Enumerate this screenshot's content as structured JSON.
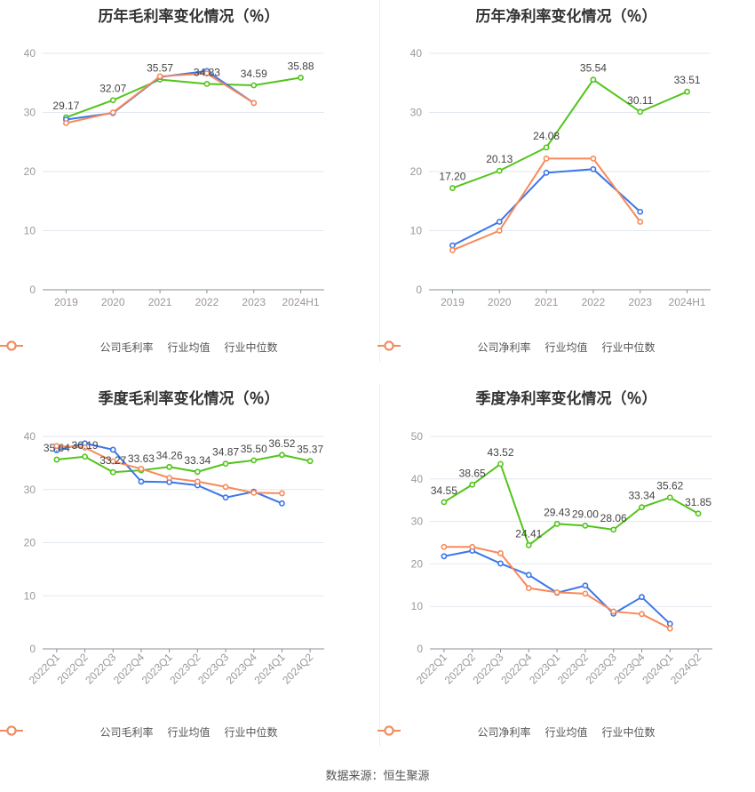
{
  "colors": {
    "company": "#52c41a",
    "avg": "#3b76e8",
    "median": "#f78a5a",
    "grid": "#e3e7f0",
    "axis": "#8a8f99",
    "tick": "#999999",
    "label": "#444444"
  },
  "source": "数据来源：恒生聚源",
  "chart_data": [
    {
      "type": "line",
      "title": "历年毛利率变化情况（％）",
      "categories": [
        "2019",
        "2020",
        "2021",
        "2022",
        "2023",
        "2024H1"
      ],
      "ylim": [
        0,
        40
      ],
      "yticks": [
        0,
        10,
        20,
        30,
        40
      ],
      "rotate": false,
      "series": [
        {
          "name": "公司毛利率",
          "key": "company",
          "values": [
            29.17,
            32.07,
            35.57,
            34.83,
            34.59,
            35.88
          ],
          "labels": [
            "29.17",
            "32.07",
            "35.57",
            "34.83",
            "34.59",
            "35.88"
          ]
        },
        {
          "name": "行业均值",
          "key": "avg",
          "values": [
            28.8,
            29.9,
            36.0,
            37.0,
            31.6,
            null
          ]
        },
        {
          "name": "行业中位数",
          "key": "median",
          "values": [
            28.2,
            30.0,
            36.1,
            36.6,
            31.6,
            null
          ]
        }
      ]
    },
    {
      "type": "line",
      "title": "历年净利率变化情况（％）",
      "categories": [
        "2019",
        "2020",
        "2021",
        "2022",
        "2023",
        "2024H1"
      ],
      "ylim": [
        0,
        40
      ],
      "yticks": [
        0,
        10,
        20,
        30,
        40
      ],
      "rotate": false,
      "series": [
        {
          "name": "公司净利率",
          "key": "company",
          "values": [
            17.2,
            20.13,
            24.08,
            35.54,
            30.11,
            33.51
          ],
          "labels": [
            "17.20",
            "20.13",
            "24.08",
            "35.54",
            "30.11",
            "33.51"
          ]
        },
        {
          "name": "行业均值",
          "key": "avg",
          "values": [
            7.5,
            11.5,
            19.8,
            20.4,
            13.2,
            null
          ]
        },
        {
          "name": "行业中位数",
          "key": "median",
          "values": [
            6.7,
            10.0,
            22.2,
            22.2,
            11.5,
            null
          ]
        }
      ]
    },
    {
      "type": "line",
      "title": "季度毛利率变化情况（％）",
      "categories": [
        "2022Q1",
        "2022Q2",
        "2022Q3",
        "2022Q4",
        "2023Q1",
        "2023Q2",
        "2023Q3",
        "2023Q4",
        "2024Q1",
        "2024Q2"
      ],
      "ylim": [
        0,
        40
      ],
      "yticks": [
        0,
        10,
        20,
        30,
        40
      ],
      "rotate": true,
      "series": [
        {
          "name": "公司毛利率",
          "key": "company",
          "values": [
            35.64,
            36.19,
            33.27,
            33.63,
            34.26,
            33.34,
            34.87,
            35.5,
            36.52,
            35.37
          ],
          "labels": [
            "35.64",
            "36.19",
            "33.27",
            "33.63",
            "34.26",
            "33.34",
            "34.87",
            "35.50",
            "36.52",
            "35.37"
          ]
        },
        {
          "name": "行业均值",
          "key": "avg",
          "values": [
            37.4,
            38.7,
            37.5,
            31.5,
            31.4,
            30.8,
            28.5,
            29.6,
            27.4,
            null
          ]
        },
        {
          "name": "行业中位数",
          "key": "median",
          "values": [
            38.2,
            37.9,
            35.3,
            33.9,
            32.2,
            31.5,
            30.5,
            29.4,
            29.3,
            null
          ]
        }
      ]
    },
    {
      "type": "line",
      "title": "季度净利率变化情况（％）",
      "categories": [
        "2022Q1",
        "2022Q2",
        "2022Q3",
        "2022Q4",
        "2023Q1",
        "2023Q2",
        "2023Q3",
        "2023Q4",
        "2024Q1",
        "2024Q2"
      ],
      "ylim": [
        0,
        50
      ],
      "yticks": [
        0,
        10,
        20,
        30,
        40,
        50
      ],
      "rotate": true,
      "series": [
        {
          "name": "公司净利率",
          "key": "company",
          "values": [
            34.55,
            38.65,
            43.52,
            24.41,
            29.43,
            29.0,
            28.06,
            33.34,
            35.62,
            31.85
          ],
          "labels": [
            "34.55",
            "38.65",
            "43.52",
            "24.41",
            "29.43",
            "29.00",
            "28.06",
            "33.34",
            "35.62",
            "31.85"
          ]
        },
        {
          "name": "行业均值",
          "key": "avg",
          "values": [
            21.8,
            23.1,
            20.1,
            17.4,
            13.2,
            14.9,
            8.3,
            12.2,
            5.9,
            null
          ]
        },
        {
          "name": "行业中位数",
          "key": "median",
          "values": [
            24.0,
            24.0,
            22.5,
            14.3,
            13.3,
            13.0,
            8.8,
            8.2,
            4.8,
            null
          ]
        }
      ]
    }
  ]
}
